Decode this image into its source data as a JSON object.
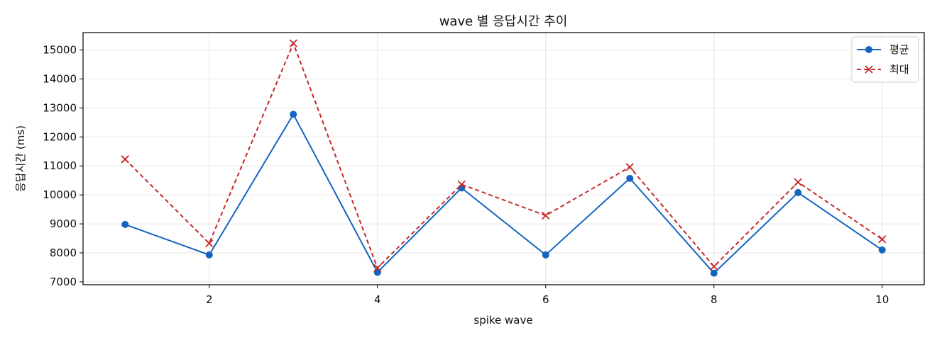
{
  "chart_data": {
    "type": "line",
    "title": "wave 별 응답시간 추이",
    "xlabel": "spike wave",
    "ylabel": "응답시간 (ms)",
    "xlim": [
      0.5,
      10.5
    ],
    "ylim": [
      6900,
      15600
    ],
    "xticks": [
      2,
      4,
      6,
      8,
      10
    ],
    "yticks": [
      7000,
      8000,
      9000,
      10000,
      11000,
      12000,
      13000,
      14000,
      15000
    ],
    "grid": true,
    "legend_position": "top-right",
    "x": [
      1,
      2,
      3,
      4,
      5,
      6,
      7,
      8,
      9,
      10
    ],
    "series": [
      {
        "name": "평균",
        "color": "#1565c0",
        "marker": "circle",
        "line": "solid",
        "values": [
          8980,
          7930,
          12780,
          7330,
          10240,
          7930,
          10570,
          7300,
          10080,
          8100
        ]
      },
      {
        "name": "최대",
        "color": "#c62828",
        "marker": "x",
        "line": "dashed",
        "values": [
          11230,
          8330,
          15230,
          7480,
          10360,
          9290,
          10960,
          7530,
          10440,
          8470
        ]
      }
    ]
  }
}
